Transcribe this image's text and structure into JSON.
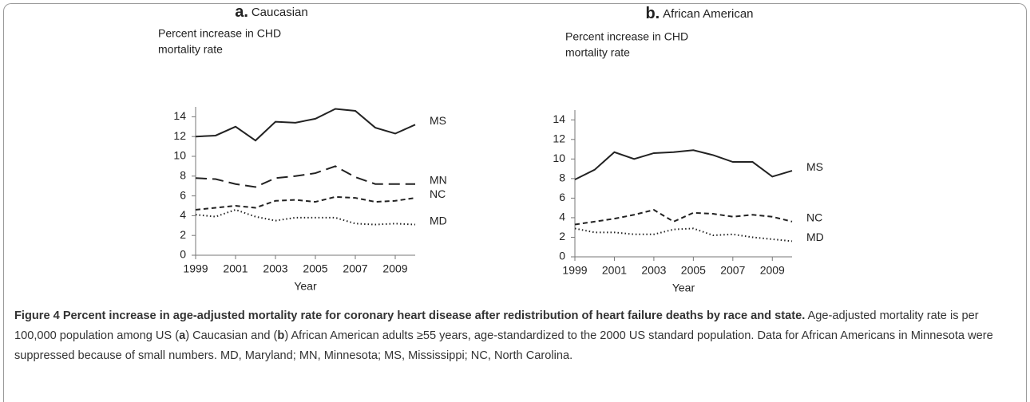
{
  "chart_data": [
    {
      "type": "line",
      "panel": "a.",
      "title": "Caucasian",
      "ylabel": [
        "Percent increase in CHD",
        "mortality rate"
      ],
      "xlabel": "Year",
      "x": [
        1999,
        2000,
        2001,
        2002,
        2003,
        2004,
        2005,
        2006,
        2007,
        2008,
        2009,
        2010
      ],
      "xlim": [
        1999,
        2010
      ],
      "xticks": [
        1999,
        2001,
        2003,
        2005,
        2007,
        2009
      ],
      "ylim": [
        0,
        15
      ],
      "yticks": [
        0,
        2,
        4,
        6,
        8,
        10,
        12,
        14
      ],
      "series": [
        {
          "name": "MS",
          "color": "#222222",
          "style": "solid",
          "values": [
            12.0,
            12.1,
            13.0,
            11.6,
            13.5,
            13.4,
            13.8,
            14.8,
            14.6,
            12.9,
            12.3,
            13.2
          ]
        },
        {
          "name": "MN",
          "color": "#222222",
          "style": "long-dash",
          "values": [
            7.8,
            7.7,
            7.2,
            6.9,
            7.8,
            8.0,
            8.3,
            9.0,
            7.9,
            7.2,
            7.2,
            7.2
          ]
        },
        {
          "name": "NC",
          "color": "#222222",
          "style": "dashed",
          "values": [
            4.6,
            4.8,
            5.0,
            4.8,
            5.5,
            5.6,
            5.4,
            5.9,
            5.8,
            5.4,
            5.5,
            5.8
          ]
        },
        {
          "name": "MD",
          "color": "#222222",
          "style": "dotted",
          "values": [
            4.1,
            3.9,
            4.6,
            3.9,
            3.5,
            3.8,
            3.8,
            3.8,
            3.2,
            3.1,
            3.2,
            3.1
          ]
        }
      ]
    },
    {
      "type": "line",
      "panel": "b.",
      "title": "African American",
      "ylabel": [
        "Percent increase in CHD",
        "mortality rate"
      ],
      "xlabel": "Year",
      "x": [
        1999,
        2000,
        2001,
        2002,
        2003,
        2004,
        2005,
        2006,
        2007,
        2008,
        2009,
        2010
      ],
      "xlim": [
        1999,
        2010
      ],
      "xticks": [
        1999,
        2001,
        2003,
        2005,
        2007,
        2009
      ],
      "ylim": [
        0,
        15
      ],
      "yticks": [
        0,
        2,
        4,
        6,
        8,
        10,
        12,
        14
      ],
      "series": [
        {
          "name": "MS",
          "color": "#222222",
          "style": "solid",
          "values": [
            7.9,
            8.9,
            10.7,
            10.0,
            10.6,
            10.7,
            10.9,
            10.4,
            9.7,
            9.7,
            8.2,
            8.8
          ]
        },
        {
          "name": "NC",
          "color": "#222222",
          "style": "dashed",
          "values": [
            3.3,
            3.6,
            3.9,
            4.3,
            4.8,
            3.6,
            4.5,
            4.4,
            4.1,
            4.3,
            4.1,
            3.6
          ]
        },
        {
          "name": "MD",
          "color": "#222222",
          "style": "dotted",
          "values": [
            2.9,
            2.5,
            2.5,
            2.3,
            2.3,
            2.8,
            2.9,
            2.2,
            2.3,
            2.0,
            1.8,
            1.6
          ]
        }
      ]
    }
  ],
  "caption": {
    "title": "Figure 4 Percent increase in age-adjusted mortality rate for coronary heart disease after redistribution of heart failure deaths by race and state.",
    "body": [
      " Age-adjusted mortality rate is per 100,000 population among US (",
      "a",
      ") Caucasian and (",
      "b",
      ") African American adults ≥55 years, age-standardized to the 2000 US standard population. Data for African Americans in Minnesota were suppressed because of small numbers. MD, Maryland; MN, Minnesota; MS, Mississippi; NC, North Carolina."
    ]
  }
}
